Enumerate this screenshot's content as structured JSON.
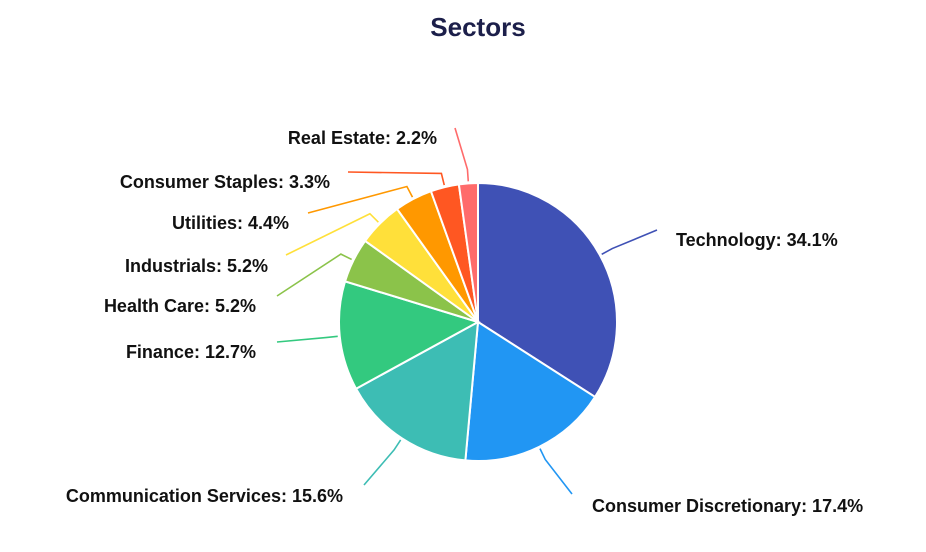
{
  "chart_data": {
    "type": "pie",
    "title": "Sectors",
    "slices": [
      {
        "label": "Technology",
        "value": 34.1,
        "color": "#3f51b5",
        "display": "Technology: 34.1%"
      },
      {
        "label": "Consumer Discretionary",
        "value": 17.4,
        "color": "#2196f3",
        "display": "Consumer Discretionary: 17.4%"
      },
      {
        "label": "Communication Services",
        "value": 15.6,
        "color": "#3dbdb4",
        "display": "Communication Services: 15.6%"
      },
      {
        "label": "Finance",
        "value": 12.7,
        "color": "#33c97f",
        "display": "Finance: 12.7%"
      },
      {
        "label": "Health Care",
        "value": 5.2,
        "color": "#8bc34a",
        "display": "Health Care: 5.2%"
      },
      {
        "label": "Industrials",
        "value": 5.2,
        "color": "#ffe03a",
        "display": "Industrials: 5.2%"
      },
      {
        "label": "Utilities",
        "value": 4.4,
        "color": "#ff9800",
        "display": "Utilities: 4.4%"
      },
      {
        "label": "Consumer Staples",
        "value": 3.3,
        "color": "#ff5722",
        "display": "Consumer Staples: 3.3%"
      },
      {
        "label": "Real Estate",
        "value": 2.2,
        "color": "#ff6b6b",
        "display": "Real Estate: 2.2%"
      }
    ]
  }
}
